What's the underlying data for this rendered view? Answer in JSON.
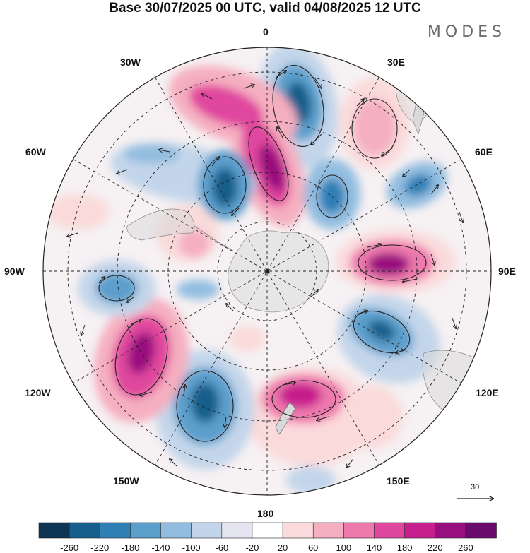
{
  "header": {
    "title": "Base 30/07/2025 00 UTC, valid 04/08/2025 12 UTC",
    "brand": "MODES"
  },
  "map": {
    "projection": "south polar stereographic",
    "longitude_labels": [
      "0",
      "30E",
      "60E",
      "90E",
      "120E",
      "150E",
      "180",
      "150W",
      "120W",
      "90W",
      "60W",
      "30W"
    ],
    "wind_reference": {
      "value": "30"
    },
    "colorbar": {
      "labels": [
        "-260",
        "-220",
        "-180",
        "-140",
        "-100",
        "-60",
        "-20",
        "20",
        "60",
        "100",
        "140",
        "180",
        "220",
        "260"
      ],
      "colors": [
        "#0e3553",
        "#165f8c",
        "#2f7fb5",
        "#5b9fcc",
        "#93bde0",
        "#c3d5ea",
        "#e5e5f1",
        "#ffffff",
        "#fadada",
        "#f5afc0",
        "#ee79ad",
        "#e0479e",
        "#c71f8d",
        "#9a0f7f",
        "#6a0a6c"
      ]
    },
    "anomaly_centers": [
      {
        "id": "neg-0",
        "sign": "negative",
        "lon_label": "0-30E",
        "strength": -190
      },
      {
        "id": "pos-10w",
        "sign": "positive",
        "lon_label": "0-30W",
        "strength": 250
      },
      {
        "id": "pos-30e",
        "sign": "positive",
        "lon_label": "30E",
        "strength": 130
      },
      {
        "id": "neg-40w",
        "sign": "negative",
        "lon_label": "30W-60W",
        "strength": -230
      },
      {
        "id": "neg-50e",
        "sign": "negative",
        "lon_label": "60E",
        "strength": -150
      },
      {
        "id": "pos-90e",
        "sign": "positive",
        "lon_label": "90E",
        "strength": 240
      },
      {
        "id": "neg-115e",
        "sign": "negative",
        "lon_label": "120E",
        "strength": -190
      },
      {
        "id": "pos-165e",
        "sign": "positive",
        "lon_label": "150E-180",
        "strength": 190
      },
      {
        "id": "neg-145w",
        "sign": "negative",
        "lon_label": "150W",
        "strength": -230
      },
      {
        "id": "pos-120w",
        "sign": "positive",
        "lon_label": "120W",
        "strength": 250
      },
      {
        "id": "neg-95w",
        "sign": "negative",
        "lon_label": "90W",
        "strength": -150
      }
    ]
  }
}
